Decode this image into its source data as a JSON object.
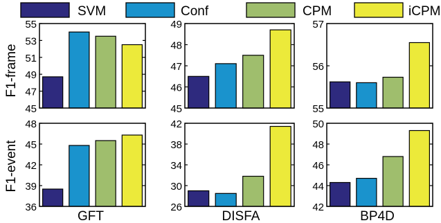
{
  "legend": [
    {
      "name": "SVM",
      "color": "#2e2a7e"
    },
    {
      "name": "Conf",
      "color": "#1a93cd"
    },
    {
      "name": "CPM",
      "color": "#9fbe6d"
    },
    {
      "name": "iCPM",
      "color": "#ecea3a"
    }
  ],
  "chart_data": [
    {
      "type": "bar",
      "row_label": "F1-frame",
      "xlabel": "",
      "ylim": [
        45,
        55
      ],
      "yticks": [
        45,
        47,
        49,
        51,
        53,
        55
      ],
      "series": [
        {
          "name": "SVM",
          "value": 48.7
        },
        {
          "name": "Conf",
          "value": 54.0
        },
        {
          "name": "CPM",
          "value": 53.5
        },
        {
          "name": "iCPM",
          "value": 52.5
        }
      ]
    },
    {
      "type": "bar",
      "row_label": "",
      "xlabel": "",
      "ylim": [
        45,
        49
      ],
      "yticks": [
        45,
        46,
        47,
        48,
        49
      ],
      "series": [
        {
          "name": "SVM",
          "value": 46.5
        },
        {
          "name": "Conf",
          "value": 47.1
        },
        {
          "name": "CPM",
          "value": 47.5
        },
        {
          "name": "iCPM",
          "value": 48.7
        }
      ]
    },
    {
      "type": "bar",
      "row_label": "",
      "xlabel": "",
      "ylim": [
        55,
        57
      ],
      "yticks": [
        55,
        56,
        57
      ],
      "series": [
        {
          "name": "SVM",
          "value": 55.62
        },
        {
          "name": "Conf",
          "value": 55.6
        },
        {
          "name": "CPM",
          "value": 55.73
        },
        {
          "name": "iCPM",
          "value": 56.55
        }
      ]
    },
    {
      "type": "bar",
      "row_label": "F1-event",
      "xlabel": "GFT",
      "ylim": [
        36,
        48
      ],
      "yticks": [
        36,
        39,
        42,
        45,
        48
      ],
      "series": [
        {
          "name": "SVM",
          "value": 38.5
        },
        {
          "name": "Conf",
          "value": 44.8
        },
        {
          "name": "CPM",
          "value": 45.5
        },
        {
          "name": "iCPM",
          "value": 46.3
        }
      ]
    },
    {
      "type": "bar",
      "row_label": "",
      "xlabel": "DISFA",
      "ylim": [
        26,
        42
      ],
      "yticks": [
        26,
        30,
        34,
        38,
        42
      ],
      "series": [
        {
          "name": "SVM",
          "value": 29.0
        },
        {
          "name": "Conf",
          "value": 28.5
        },
        {
          "name": "CPM",
          "value": 31.8
        },
        {
          "name": "iCPM",
          "value": 41.4
        }
      ]
    },
    {
      "type": "bar",
      "row_label": "",
      "xlabel": "BP4D",
      "ylim": [
        42,
        50
      ],
      "yticks": [
        42,
        44,
        46,
        48,
        50
      ],
      "series": [
        {
          "name": "SVM",
          "value": 44.3
        },
        {
          "name": "Conf",
          "value": 44.7
        },
        {
          "name": "CPM",
          "value": 46.8
        },
        {
          "name": "iCPM",
          "value": 49.3
        }
      ]
    }
  ]
}
